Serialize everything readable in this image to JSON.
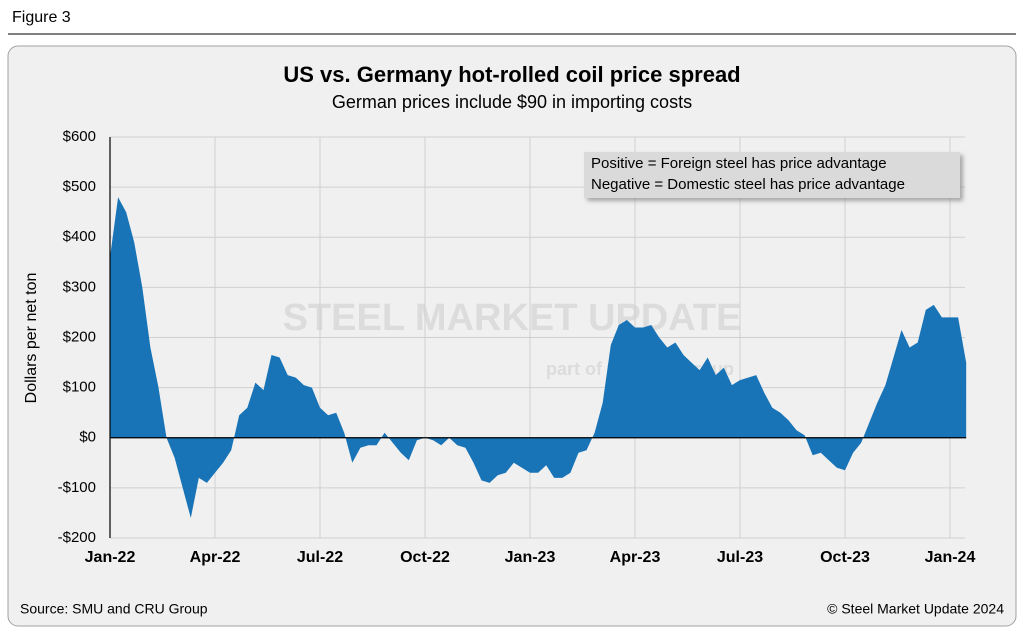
{
  "figure_label": "Figure 3",
  "chart_data": {
    "type": "area",
    "title": "US vs. Germany hot-rolled coil price spread",
    "subtitle": "German prices include $90 in importing costs",
    "y_label": "Dollars per net ton",
    "annotations": [
      "Positive = Foreign steel has price advantage",
      "Negative = Domestic steel has price advantage"
    ],
    "watermark": [
      "STEEL MARKET UPDATE",
      "part of the CRU group"
    ],
    "source": "Source: SMU and CRU Group",
    "copyright": "© Steel Market Update 2024",
    "color": "#1874b6",
    "grid": true,
    "ylim": [
      -200,
      600
    ],
    "yticks": [
      {
        "value": -200,
        "label": "-$200"
      },
      {
        "value": -100,
        "label": "-$100"
      },
      {
        "value": 0,
        "label": "$0"
      },
      {
        "value": 100,
        "label": "$100"
      },
      {
        "value": 200,
        "label": "$200"
      },
      {
        "value": 300,
        "label": "$300"
      },
      {
        "value": 400,
        "label": "$400"
      },
      {
        "value": 500,
        "label": "$500"
      },
      {
        "value": 600,
        "label": "$600"
      }
    ],
    "categories": [
      "Jan-22",
      null,
      null,
      null,
      null,
      null,
      null,
      null,
      null,
      null,
      null,
      null,
      null,
      "Apr-22",
      null,
      null,
      null,
      null,
      null,
      null,
      null,
      null,
      null,
      null,
      null,
      null,
      "Jul-22",
      null,
      null,
      null,
      null,
      null,
      null,
      null,
      null,
      null,
      null,
      null,
      null,
      "Oct-22",
      null,
      null,
      null,
      null,
      null,
      null,
      null,
      null,
      null,
      null,
      null,
      null,
      "Jan-23",
      null,
      null,
      null,
      null,
      null,
      null,
      null,
      null,
      null,
      null,
      null,
      null,
      "Apr-23",
      null,
      null,
      null,
      null,
      null,
      null,
      null,
      null,
      null,
      null,
      null,
      null,
      "Jul-23",
      null,
      null,
      null,
      null,
      null,
      null,
      null,
      null,
      null,
      null,
      null,
      null,
      "Oct-23",
      null,
      null,
      null,
      null,
      null,
      null,
      null,
      null,
      null,
      null,
      null,
      null,
      "Jan-24",
      null,
      null
    ],
    "values": [
      360,
      480,
      450,
      390,
      300,
      180,
      100,
      0,
      -40,
      -100,
      -160,
      -80,
      -90,
      -70,
      -50,
      -25,
      45,
      60,
      110,
      95,
      165,
      160,
      125,
      120,
      105,
      100,
      60,
      45,
      50,
      10,
      -50,
      -20,
      -15,
      -15,
      10,
      -10,
      -30,
      -45,
      -5,
      0,
      -5,
      -15,
      0,
      -15,
      -20,
      -50,
      -85,
      -90,
      -75,
      -70,
      -50,
      -60,
      -70,
      -70,
      -55,
      -80,
      -80,
      -70,
      -30,
      -25,
      10,
      70,
      185,
      225,
      235,
      220,
      220,
      225,
      200,
      180,
      190,
      165,
      150,
      135,
      160,
      125,
      140,
      105,
      115,
      120,
      125,
      90,
      60,
      50,
      35,
      15,
      5,
      -35,
      -30,
      -45,
      -60,
      -65,
      -30,
      -10,
      30,
      70,
      105,
      160,
      215,
      180,
      190,
      255,
      265,
      240,
      240,
      240,
      150
    ]
  }
}
